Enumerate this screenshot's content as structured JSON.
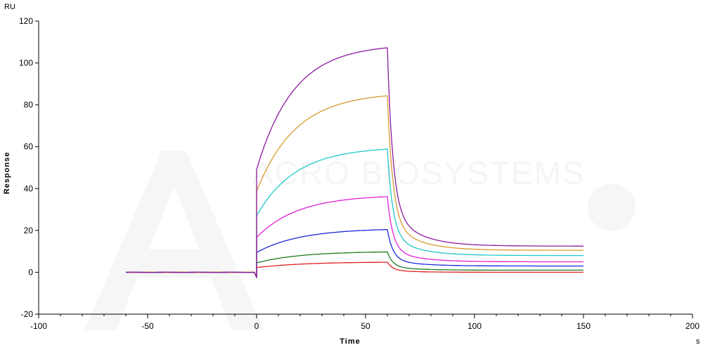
{
  "chart_data": {
    "type": "line",
    "title": "",
    "xlabel": "Time",
    "ylabel": "Response",
    "x_unit": "s",
    "y_unit": "RU",
    "xlim": [
      -100,
      200
    ],
    "ylim": [
      -20,
      120
    ],
    "x_ticks": [
      -100,
      -50,
      0,
      50,
      100,
      150,
      200
    ],
    "y_ticks": [
      -20,
      0,
      20,
      40,
      60,
      80,
      100,
      120
    ],
    "grid": false,
    "legend": "none",
    "association_start": 0,
    "dissociation_start": 60,
    "end_time": 150,
    "watermark": "ACRO BIOSYSTEMS",
    "series": [
      {
        "color": "#8b1a9e",
        "plateau": 109,
        "tau_on": 17,
        "residual": 12.5,
        "fast_fraction": 0.8,
        "tau_off": 2.5
      },
      {
        "color": "#d69a2e",
        "plateau": 86,
        "tau_on": 18,
        "residual": 10.5,
        "fast_fraction": 0.8,
        "tau_off": 2.5
      },
      {
        "color": "#22c8c8",
        "plateau": 60,
        "tau_on": 18,
        "residual": 8,
        "fast_fraction": 0.8,
        "tau_off": 2.5
      },
      {
        "color": "#e020d8",
        "plateau": 37,
        "tau_on": 19,
        "residual": 5,
        "fast_fraction": 0.8,
        "tau_off": 2.5
      },
      {
        "color": "#1a2ad6",
        "plateau": 21,
        "tau_on": 20,
        "residual": 3,
        "fast_fraction": 0.8,
        "tau_off": 2.5
      },
      {
        "color": "#1e7d1e",
        "plateau": 10,
        "tau_on": 20,
        "residual": 1,
        "fast_fraction": 0.8,
        "tau_off": 2.5
      },
      {
        "color": "#e02020",
        "plateau": 5,
        "tau_on": 22,
        "residual": 0,
        "fast_fraction": 0.8,
        "tau_off": 2.5
      }
    ]
  }
}
